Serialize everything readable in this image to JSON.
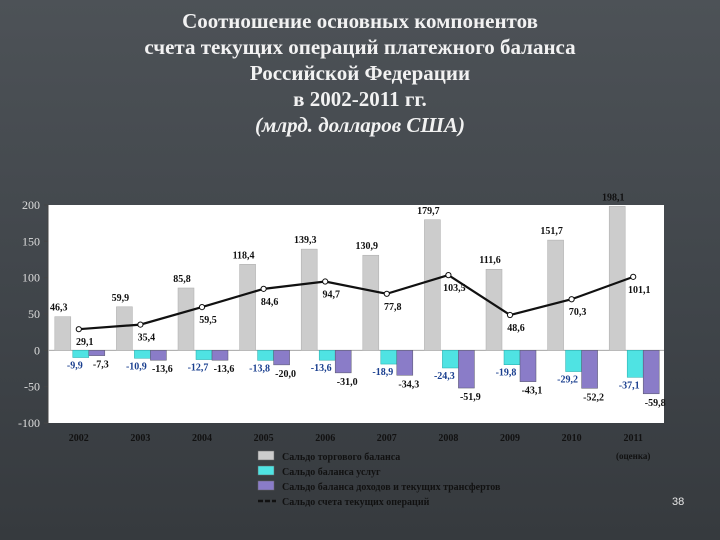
{
  "title": {
    "lines": [
      "Соотношение основных компонентов",
      "счета текущих операций платежного баланса",
      "Российской Федерации",
      "в 2002-2011 гг."
    ],
    "unit": "(млрд. долларов США)"
  },
  "page_number": "38",
  "chart_data": {
    "type": "bar",
    "categories": [
      "2002",
      "2003",
      "2004",
      "2005",
      "2006",
      "2007",
      "2008",
      "2009",
      "2010",
      "2011"
    ],
    "category_note": "(оценка)",
    "ylim": [
      -100,
      200
    ],
    "yticks": [
      "200",
      "150",
      "100",
      "50",
      "0",
      "-50",
      "-100"
    ],
    "series": [
      {
        "name": "Сальдо торгового баланса",
        "kind": "bar",
        "color": "#cccccc",
        "values": [
          46.3,
          59.9,
          85.8,
          118.4,
          139.3,
          130.9,
          179.7,
          111.6,
          151.7,
          198.1
        ],
        "labels": [
          "46,3",
          "59,9",
          "85,8",
          "118,4",
          "139,3",
          "130,9",
          "179,7",
          "111,6",
          "151,7",
          "198,1"
        ]
      },
      {
        "name": "Сальдо баланса услуг",
        "kind": "bar",
        "color": "#4fe3e3",
        "values": [
          -9.9,
          -10.9,
          -12.7,
          -13.8,
          -13.6,
          -18.9,
          -24.3,
          -19.8,
          -29.2,
          -37.1
        ],
        "labels": [
          "-9,9",
          "-10,9",
          "-12,7",
          "-13,8",
          "-13,6",
          "-18,9",
          "-24,3",
          "-19,8",
          "-29,2",
          "-37,1"
        ]
      },
      {
        "name": "Сальдо баланса доходов и текущих трансфертов",
        "kind": "bar",
        "color": "#8a7cc8",
        "values": [
          -7.3,
          -13.6,
          -13.6,
          -20.0,
          -31.0,
          -34.3,
          -51.9,
          -43.1,
          -52.2,
          -59.8
        ],
        "labels": [
          "-7,3",
          "-13,6",
          "-13,6",
          "-20,0",
          "-31,0",
          "-34,3",
          "-51,9",
          "-43,1",
          "-52,2",
          "-59,8"
        ]
      },
      {
        "name": "Сальдо счета текущих операций",
        "kind": "line",
        "color": "#111111",
        "values": [
          29.1,
          35.4,
          59.5,
          84.6,
          94.7,
          77.8,
          103.5,
          48.6,
          70.3,
          101.1
        ],
        "labels": [
          "29,1",
          "35,4",
          "59,5",
          "84,6",
          "94,7",
          "77,8",
          "103,5",
          "48,6",
          "70,3",
          "101,1"
        ]
      }
    ],
    "grid": false,
    "legend_placement": "bottom"
  }
}
